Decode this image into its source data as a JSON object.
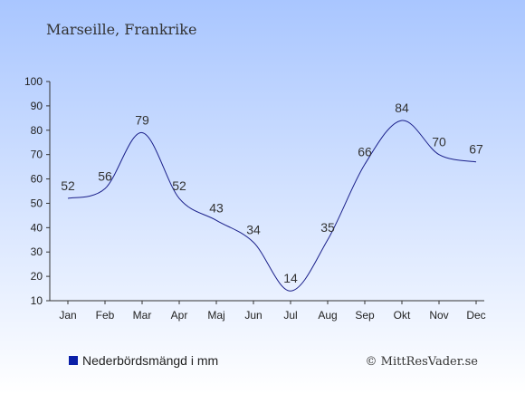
{
  "chart_data": {
    "type": "line",
    "title": "Marseille, Frankrike",
    "categories": [
      "Jan",
      "Feb",
      "Mar",
      "Apr",
      "Maj",
      "Jun",
      "Jul",
      "Aug",
      "Sep",
      "Okt",
      "Nov",
      "Dec"
    ],
    "series": [
      {
        "name": "Nederbördsmängd i mm",
        "values": [
          52,
          56,
          79,
          52,
          43,
          34,
          14,
          35,
          66,
          84,
          70,
          67
        ],
        "color": "#1a1f8a"
      }
    ],
    "ylim": [
      10,
      100
    ],
    "yticks": [
      10,
      20,
      30,
      40,
      50,
      60,
      70,
      80,
      90,
      100
    ],
    "grid": false,
    "legend": "bottom-left",
    "xlabel": "",
    "ylabel": ""
  },
  "copyright": "© MittResVader.se",
  "colors": {
    "background_top": "#a9c6ff",
    "background_bottom": "#ffffff",
    "line": "#1a1f8a",
    "legend_marker": "#0a1fa8",
    "text": "#333333"
  }
}
